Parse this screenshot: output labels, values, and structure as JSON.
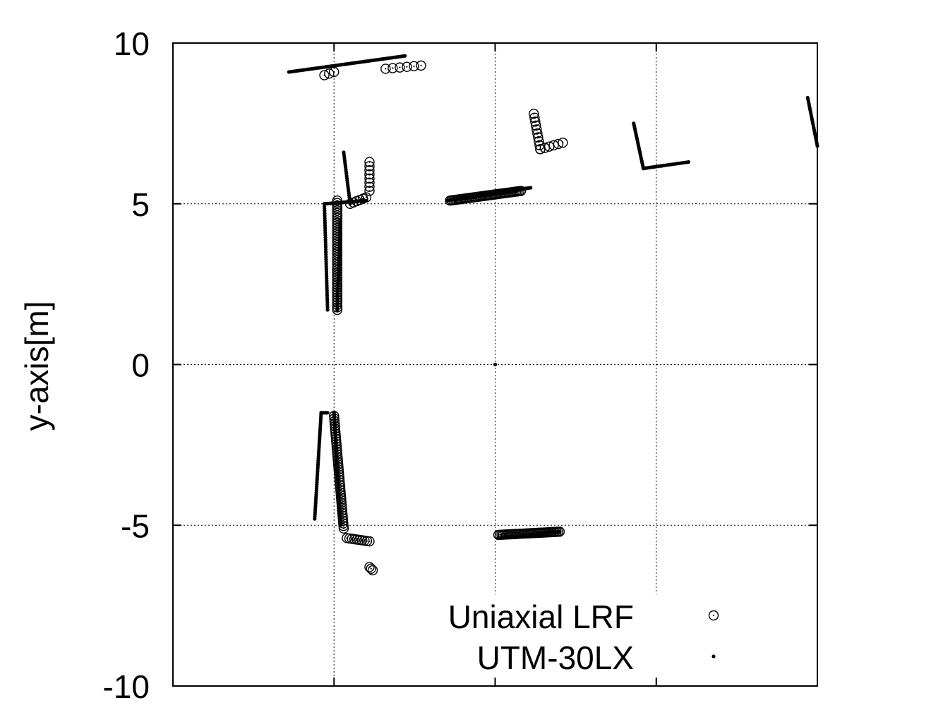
{
  "chart_data": {
    "type": "scatter",
    "title": "",
    "xlabel": "",
    "ylabel": "y-axis[m]",
    "xlim": [
      -10,
      10
    ],
    "ylim": [
      -10,
      10
    ],
    "xticks": [
      -10,
      -5,
      0,
      5,
      10
    ],
    "yticks": [
      -10,
      -5,
      0,
      5,
      10
    ],
    "ytick_labels": [
      "-10",
      "-5",
      "0",
      "5",
      "10"
    ],
    "grid": true,
    "legend_position": "bottom-right",
    "series": [
      {
        "name": "Uniaxial LRF",
        "marker": "open-circle",
        "segments": [
          {
            "from": [
              -5.0,
              9.1
            ],
            "to": [
              -5.3,
              9.0
            ],
            "n": 3
          },
          {
            "from": [
              -3.4,
              9.2
            ],
            "to": [
              -2.3,
              9.3
            ],
            "n": 6
          },
          {
            "from": [
              -4.9,
              1.7
            ],
            "to": [
              -4.9,
              5.1
            ],
            "n": 45
          },
          {
            "from": [
              -4.5,
              5.0
            ],
            "to": [
              -4.0,
              5.2
            ],
            "n": 6
          },
          {
            "from": [
              -3.9,
              5.4
            ],
            "to": [
              -3.9,
              6.3
            ],
            "n": 8
          },
          {
            "from": [
              1.2,
              7.8
            ],
            "to": [
              1.4,
              6.7
            ],
            "n": 10
          },
          {
            "from": [
              1.4,
              6.7
            ],
            "to": [
              2.1,
              6.9
            ],
            "n": 6
          },
          {
            "from": [
              -1.4,
              5.1
            ],
            "to": [
              0.8,
              5.4
            ],
            "n": 45
          },
          {
            "from": [
              -5.0,
              -1.6
            ],
            "to": [
              -4.7,
              -5.1
            ],
            "n": 45
          },
          {
            "from": [
              -4.6,
              -5.4
            ],
            "to": [
              -3.9,
              -5.5
            ],
            "n": 10
          },
          {
            "from": [
              -3.9,
              -6.3
            ],
            "to": [
              -3.8,
              -6.4
            ],
            "n": 3
          },
          {
            "from": [
              0.1,
              -5.3
            ],
            "to": [
              2.0,
              -5.2
            ],
            "n": 40
          }
        ]
      },
      {
        "name": "UTM-30LX",
        "marker": "dot",
        "segments": [
          {
            "from": [
              -6.4,
              9.1
            ],
            "to": [
              -2.8,
              9.6
            ],
            "n": 70
          },
          {
            "from": [
              -5.2,
              1.7
            ],
            "to": [
              -5.3,
              5.0
            ],
            "n": 45
          },
          {
            "from": [
              -4.9,
              1.7
            ],
            "to": [
              -4.8,
              4.5
            ],
            "n": 60
          },
          {
            "from": [
              -5.3,
              5.0
            ],
            "to": [
              -4.0,
              5.1
            ],
            "n": 25
          },
          {
            "from": [
              -4.7,
              6.6
            ],
            "to": [
              -4.5,
              5.0
            ],
            "n": 25
          },
          {
            "from": [
              -1.5,
              5.1
            ],
            "to": [
              1.1,
              5.5
            ],
            "n": 80
          },
          {
            "from": [
              4.3,
              7.5
            ],
            "to": [
              4.6,
              6.1
            ],
            "n": 25
          },
          {
            "from": [
              4.6,
              6.1
            ],
            "to": [
              6.0,
              6.3
            ],
            "n": 25
          },
          {
            "from": [
              9.7,
              8.3
            ],
            "to": [
              10.0,
              6.8
            ],
            "n": 25
          },
          {
            "from": [
              0.0,
              0.0
            ],
            "to": [
              0.0,
              0.0
            ],
            "n": 1
          },
          {
            "from": [
              -5.6,
              -4.8
            ],
            "to": [
              -5.4,
              -1.5
            ],
            "n": 50
          },
          {
            "from": [
              -5.0,
              -1.5
            ],
            "to": [
              -4.8,
              -5.0
            ],
            "n": 80
          },
          {
            "from": [
              -5.4,
              -1.5
            ],
            "to": [
              -5.2,
              -1.5
            ],
            "n": 6
          },
          {
            "from": [
              0.1,
              -5.4
            ],
            "to": [
              2.0,
              -5.2
            ],
            "n": 80
          }
        ]
      }
    ]
  }
}
